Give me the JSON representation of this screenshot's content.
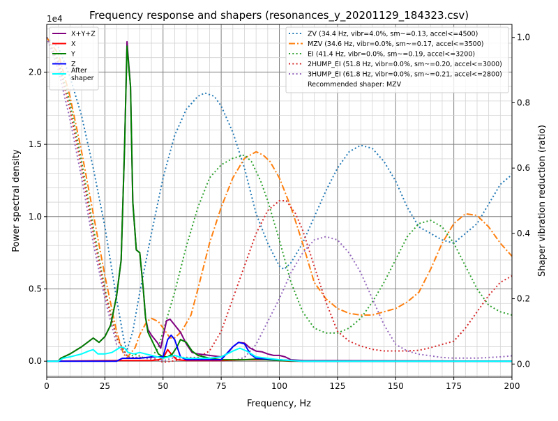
{
  "chart_data": {
    "type": "line",
    "title": "Frequency response and shapers (resonances_y_20201129_184323.csv)",
    "xlabel": "Frequency, Hz",
    "ylabel": "Power spectral density",
    "ylabel_right": "Shaper vibration reduction (ratio)",
    "y_offset_text": "1e4",
    "xlim": [
      0,
      200
    ],
    "ylim": [
      -0.11,
      2.33
    ],
    "ylim_right": [
      -0.04,
      1.04
    ],
    "x_ticks": [
      "0",
      "25",
      "50",
      "75",
      "100",
      "125",
      "150",
      "175",
      "200"
    ],
    "y_ticks": [
      "0.0",
      "0.5",
      "1.0",
      "1.5",
      "2.0"
    ],
    "y_ticks_right": [
      "0.0",
      "0.2",
      "0.4",
      "0.6",
      "0.8",
      "1.0"
    ],
    "grid": true,
    "psd_legend_placement": "top-left",
    "shaper_legend_placement": "top-right",
    "recommendation": "Recommended shaper: MZV",
    "psd_series": [
      {
        "name": "X+Y+Z",
        "color": "#800080",
        "x": [
          0,
          5,
          6,
          10,
          15,
          20,
          22.5,
          25,
          27.5,
          30,
          32,
          33.5,
          34.5,
          36,
          37,
          38.5,
          40,
          41.5,
          42.5,
          43.5,
          45,
          47.5,
          49,
          50,
          51.5,
          53,
          55,
          57.5,
          60,
          62.5,
          65,
          70,
          75,
          77.5,
          80,
          82.5,
          85,
          87.5,
          90,
          92.5,
          95,
          97.5,
          100,
          102.5,
          105,
          110,
          200
        ],
        "y": [
          0,
          0,
          0.02,
          0.05,
          0.1,
          0.16,
          0.13,
          0.17,
          0.25,
          0.45,
          0.7,
          1.5,
          2.21,
          1.9,
          1.1,
          0.77,
          0.75,
          0.5,
          0.3,
          0.22,
          0.18,
          0.13,
          0.09,
          0.17,
          0.28,
          0.29,
          0.25,
          0.2,
          0.12,
          0.06,
          0.05,
          0.04,
          0.03,
          0.05,
          0.1,
          0.13,
          0.125,
          0.09,
          0.07,
          0.065,
          0.05,
          0.04,
          0.04,
          0.03,
          0.01,
          0.005,
          0
        ]
      },
      {
        "name": "X",
        "color": "#ff0000",
        "x": [
          0,
          30,
          45,
          48,
          50,
          52,
          54,
          56,
          60,
          75,
          85,
          95,
          100,
          105,
          200
        ],
        "y": [
          0,
          0.005,
          0.005,
          0.01,
          0.02,
          0.08,
          0.04,
          0.01,
          0.005,
          0.005,
          0.01,
          0.01,
          0.005,
          0,
          0
        ]
      },
      {
        "name": "Y",
        "color": "#008000",
        "x": [
          0,
          5,
          6,
          10,
          15,
          20,
          22.5,
          25,
          27.5,
          30,
          32,
          33.5,
          34.5,
          36,
          37,
          38.5,
          40,
          41.5,
          42.5,
          43.5,
          45,
          48,
          50,
          52,
          54,
          56,
          57.5,
          60,
          62.5,
          65,
          70,
          75,
          80,
          85,
          90,
          95,
          100,
          110,
          200
        ],
        "y": [
          0,
          0,
          0.02,
          0.05,
          0.1,
          0.16,
          0.13,
          0.17,
          0.25,
          0.45,
          0.7,
          1.5,
          2.18,
          1.9,
          1.1,
          0.77,
          0.75,
          0.5,
          0.3,
          0.2,
          0.15,
          0.05,
          0.03,
          0.03,
          0.05,
          0.1,
          0.15,
          0.13,
          0.07,
          0.04,
          0.02,
          0.01,
          0.01,
          0.01,
          0.015,
          0.01,
          0.005,
          0,
          0
        ]
      },
      {
        "name": "Z",
        "color": "#0000ff",
        "x": [
          0,
          30,
          32.5,
          35,
          40,
          45,
          50,
          52,
          53.5,
          55,
          57.5,
          60,
          75,
          80,
          82.5,
          85,
          87.5,
          90,
          100,
          110,
          200
        ],
        "y": [
          0,
          0,
          0.02,
          0.02,
          0.02,
          0.03,
          0.03,
          0.15,
          0.18,
          0.15,
          0.03,
          0.01,
          0.01,
          0.1,
          0.13,
          0.12,
          0.05,
          0.02,
          0.01,
          0,
          0
        ]
      },
      {
        "name": "After\nshaper",
        "color": "#00ffff",
        "x": [
          0,
          5,
          7,
          10,
          15,
          18,
          20,
          22,
          25,
          28,
          30,
          32,
          33.5,
          35,
          37.5,
          40,
          42.5,
          45,
          50,
          55,
          57,
          60,
          70,
          75,
          80,
          83,
          86,
          90,
          100,
          110,
          200
        ],
        "y": [
          0,
          0,
          0.02,
          0.03,
          0.05,
          0.07,
          0.08,
          0.05,
          0.05,
          0.06,
          0.08,
          0.1,
          0.09,
          0.06,
          0.05,
          0.06,
          0.05,
          0.04,
          0.02,
          0.04,
          0.03,
          0.02,
          0.02,
          0.03,
          0.07,
          0.09,
          0.07,
          0.03,
          0.01,
          0,
          0
        ]
      }
    ],
    "shaper_series": [
      {
        "name": "ZV (34.4 Hz, vibr=4.0%, sm~=0.13, accel<=4500)",
        "color": "#1f77b4",
        "style": "dotted",
        "x": [
          0,
          5,
          10,
          15,
          20,
          25,
          30,
          33,
          34.4,
          37,
          40,
          45,
          50,
          55,
          60,
          65,
          68,
          72,
          75,
          80,
          85,
          90,
          95,
          100,
          102,
          105,
          110,
          115,
          120,
          125,
          130,
          135,
          140,
          145,
          150,
          155,
          160,
          165,
          170,
          175,
          180,
          185,
          190,
          195,
          200
        ],
        "y": [
          1.0,
          0.97,
          0.88,
          0.76,
          0.6,
          0.42,
          0.2,
          0.08,
          0.04,
          0.1,
          0.22,
          0.4,
          0.57,
          0.7,
          0.78,
          0.82,
          0.83,
          0.82,
          0.79,
          0.71,
          0.6,
          0.46,
          0.37,
          0.3,
          0.29,
          0.31,
          0.37,
          0.45,
          0.53,
          0.6,
          0.65,
          0.67,
          0.66,
          0.62,
          0.56,
          0.48,
          0.42,
          0.4,
          0.38,
          0.37,
          0.4,
          0.43,
          0.49,
          0.55,
          0.58
        ]
      },
      {
        "name": "MZV (34.6 Hz, vibr=0.0%, sm~=0.17, accel<=3500)",
        "color": "#ff7f0e",
        "style": "dashdot",
        "x": [
          0,
          5,
          10,
          15,
          20,
          25,
          30,
          33,
          34.6,
          38,
          40,
          43,
          45,
          48,
          50,
          53,
          55,
          58,
          62,
          65,
          70,
          75,
          80,
          85,
          90,
          93,
          96,
          100,
          105,
          110,
          115,
          120,
          125,
          130,
          135,
          140,
          145,
          150,
          155,
          160,
          165,
          170,
          175,
          180,
          185,
          190,
          195,
          200
        ],
        "y": [
          1.0,
          0.95,
          0.82,
          0.65,
          0.46,
          0.27,
          0.1,
          0.03,
          0.02,
          0.05,
          0.09,
          0.13,
          0.14,
          0.13,
          0.11,
          0.08,
          0.08,
          0.1,
          0.15,
          0.23,
          0.37,
          0.48,
          0.57,
          0.63,
          0.65,
          0.64,
          0.62,
          0.57,
          0.48,
          0.37,
          0.25,
          0.2,
          0.17,
          0.155,
          0.15,
          0.15,
          0.16,
          0.17,
          0.19,
          0.22,
          0.29,
          0.37,
          0.43,
          0.46,
          0.455,
          0.42,
          0.37,
          0.33
        ]
      },
      {
        "name": "EI (41.4 Hz, vibr=0.0%, sm~=0.19, accel<=3200)",
        "color": "#2ca02c",
        "style": "dotted",
        "x": [
          0,
          5,
          10,
          15,
          20,
          25,
          30,
          35,
          38,
          41.4,
          45,
          48,
          50,
          55,
          60,
          65,
          70,
          75,
          80,
          85,
          88,
          92,
          95,
          100,
          105,
          110,
          115,
          120,
          125,
          130,
          135,
          140,
          145,
          150,
          155,
          160,
          165,
          170,
          175,
          180,
          185,
          190,
          195,
          200
        ],
        "y": [
          1.0,
          0.93,
          0.8,
          0.62,
          0.42,
          0.23,
          0.08,
          0.02,
          0.03,
          0.02,
          0.02,
          0.05,
          0.1,
          0.22,
          0.36,
          0.48,
          0.57,
          0.61,
          0.63,
          0.64,
          0.62,
          0.56,
          0.5,
          0.38,
          0.25,
          0.16,
          0.11,
          0.095,
          0.095,
          0.11,
          0.14,
          0.19,
          0.25,
          0.32,
          0.39,
          0.43,
          0.44,
          0.42,
          0.37,
          0.3,
          0.23,
          0.18,
          0.16,
          0.15
        ]
      },
      {
        "name": "2HUMP_EI (51.8 Hz, vibr=0.0%, sm~=0.20, accel<=3000)",
        "color": "#d62728",
        "style": "dotted",
        "x": [
          0,
          5,
          10,
          15,
          20,
          25,
          30,
          35,
          40,
          45,
          50,
          55,
          60,
          65,
          70,
          75,
          80,
          85,
          90,
          95,
          100,
          103,
          107,
          110,
          115,
          120,
          125,
          130,
          135,
          140,
          145,
          150,
          155,
          160,
          165,
          170,
          175,
          180,
          185,
          190,
          195,
          200
        ],
        "y": [
          1.0,
          0.92,
          0.78,
          0.6,
          0.4,
          0.22,
          0.08,
          0.02,
          0.02,
          0.02,
          0.005,
          0.01,
          0.02,
          0.02,
          0.04,
          0.1,
          0.2,
          0.3,
          0.4,
          0.47,
          0.5,
          0.5,
          0.46,
          0.41,
          0.3,
          0.19,
          0.1,
          0.07,
          0.055,
          0.045,
          0.04,
          0.04,
          0.04,
          0.042,
          0.05,
          0.06,
          0.07,
          0.11,
          0.16,
          0.21,
          0.25,
          0.27
        ]
      },
      {
        "name": "3HUMP_EI (61.8 Hz, vibr=0.0%, sm~=0.21, accel<=2800)",
        "color": "#9467bd",
        "style": "dotted",
        "x": [
          0,
          5,
          10,
          15,
          20,
          25,
          30,
          35,
          40,
          45,
          50,
          55,
          60,
          65,
          70,
          75,
          80,
          85,
          90,
          95,
          100,
          105,
          110,
          115,
          120,
          125,
          130,
          135,
          140,
          145,
          150,
          155,
          160,
          165,
          170,
          175,
          180,
          185,
          190,
          195,
          200
        ],
        "y": [
          1.0,
          0.9,
          0.75,
          0.57,
          0.37,
          0.2,
          0.06,
          0.02,
          0.02,
          0.015,
          0.01,
          0.02,
          0.02,
          0.015,
          0.01,
          0.01,
          0.01,
          0.02,
          0.06,
          0.13,
          0.2,
          0.28,
          0.34,
          0.38,
          0.39,
          0.38,
          0.34,
          0.28,
          0.2,
          0.12,
          0.06,
          0.04,
          0.03,
          0.025,
          0.02,
          0.018,
          0.018,
          0.018,
          0.02,
          0.022,
          0.025
        ]
      }
    ]
  }
}
